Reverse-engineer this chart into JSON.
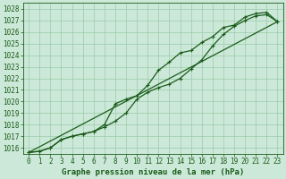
{
  "title": "Graphe pression niveau de la mer (hPa)",
  "xlim": [
    -0.5,
    23.5
  ],
  "ylim": [
    1015.5,
    1028.5
  ],
  "yticks": [
    1016,
    1017,
    1018,
    1019,
    1020,
    1021,
    1022,
    1023,
    1024,
    1025,
    1026,
    1027,
    1028
  ],
  "xticks": [
    0,
    1,
    2,
    3,
    4,
    5,
    6,
    7,
    8,
    9,
    10,
    11,
    12,
    13,
    14,
    15,
    16,
    17,
    18,
    19,
    20,
    21,
    22,
    23
  ],
  "background_color": "#cce8d8",
  "grid_color": "#99ccaa",
  "line_color": "#1a5c1a",
  "series1_x": [
    0,
    1,
    2,
    3,
    4,
    5,
    6,
    7,
    8,
    9,
    10,
    11,
    12,
    13,
    14,
    15,
    16,
    17,
    18,
    19,
    20,
    21,
    22,
    23
  ],
  "series1_y": [
    1015.6,
    1015.7,
    1016.0,
    1016.7,
    1017.0,
    1017.2,
    1017.4,
    1018.0,
    1019.8,
    1020.2,
    1020.5,
    1021.4,
    1022.7,
    1023.4,
    1024.2,
    1024.4,
    1025.1,
    1025.6,
    1026.4,
    1026.6,
    1027.3,
    1027.6,
    1027.7,
    1026.9
  ],
  "series2_x": [
    0,
    1,
    2,
    3,
    4,
    5,
    6,
    7,
    8,
    9,
    10,
    11,
    12,
    13,
    14,
    15,
    16,
    17,
    18,
    19,
    20,
    21,
    22,
    23
  ],
  "series2_y": [
    1015.6,
    1015.7,
    1016.0,
    1016.7,
    1017.0,
    1017.2,
    1017.4,
    1017.8,
    1018.3,
    1019.0,
    1020.2,
    1020.8,
    1021.2,
    1021.5,
    1022.0,
    1022.8,
    1023.6,
    1024.8,
    1025.8,
    1026.5,
    1027.0,
    1027.4,
    1027.5,
    1026.9
  ],
  "series3_x": [
    0,
    23
  ],
  "series3_y": [
    1015.6,
    1026.9
  ],
  "tick_fontsize": 5.5,
  "title_fontsize": 6.5,
  "markersize": 2.0,
  "linewidth": 0.9
}
